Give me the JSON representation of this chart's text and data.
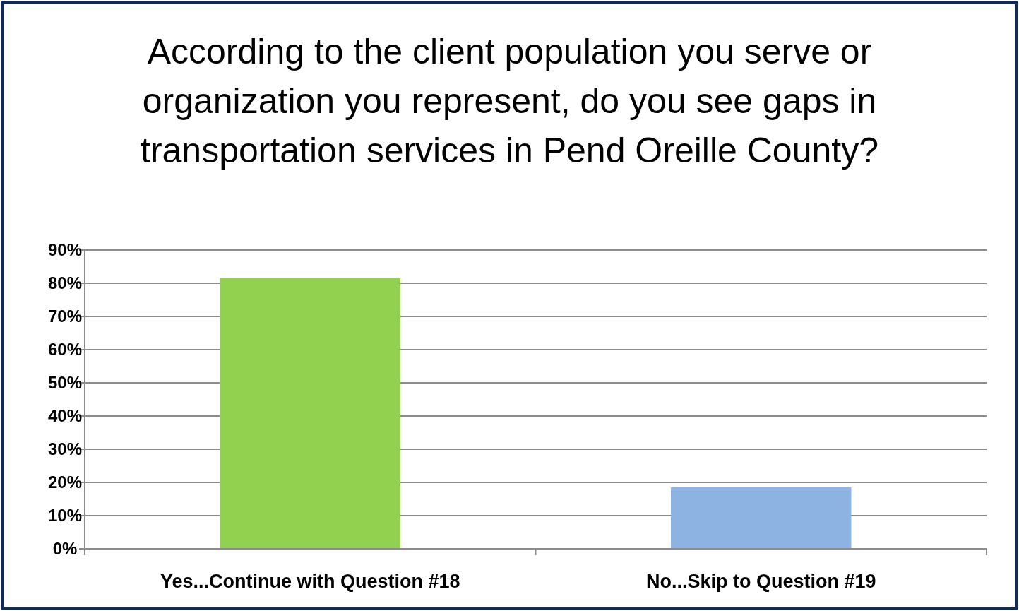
{
  "chart_data": {
    "type": "bar",
    "title": "According to the client population you serve or organization you represent, do you see gaps in transportation services in Pend Oreille County?",
    "categories": [
      "Yes...Continue with Question #18",
      "No...Skip to Question #19"
    ],
    "values": [
      81.5,
      18.5
    ],
    "colors": [
      "#92d050",
      "#8db3e2"
    ],
    "ylim": [
      0,
      90
    ],
    "yticks": [
      {
        "value": 0,
        "label": "0%"
      },
      {
        "value": 10,
        "label": "10%"
      },
      {
        "value": 20,
        "label": "20%"
      },
      {
        "value": 30,
        "label": "30%"
      },
      {
        "value": 40,
        "label": "40%"
      },
      {
        "value": 50,
        "label": "50%"
      },
      {
        "value": 60,
        "label": "60%"
      },
      {
        "value": 70,
        "label": "70%"
      },
      {
        "value": 80,
        "label": "80%"
      },
      {
        "value": 90,
        "label": "90%"
      }
    ],
    "grid": "y"
  }
}
